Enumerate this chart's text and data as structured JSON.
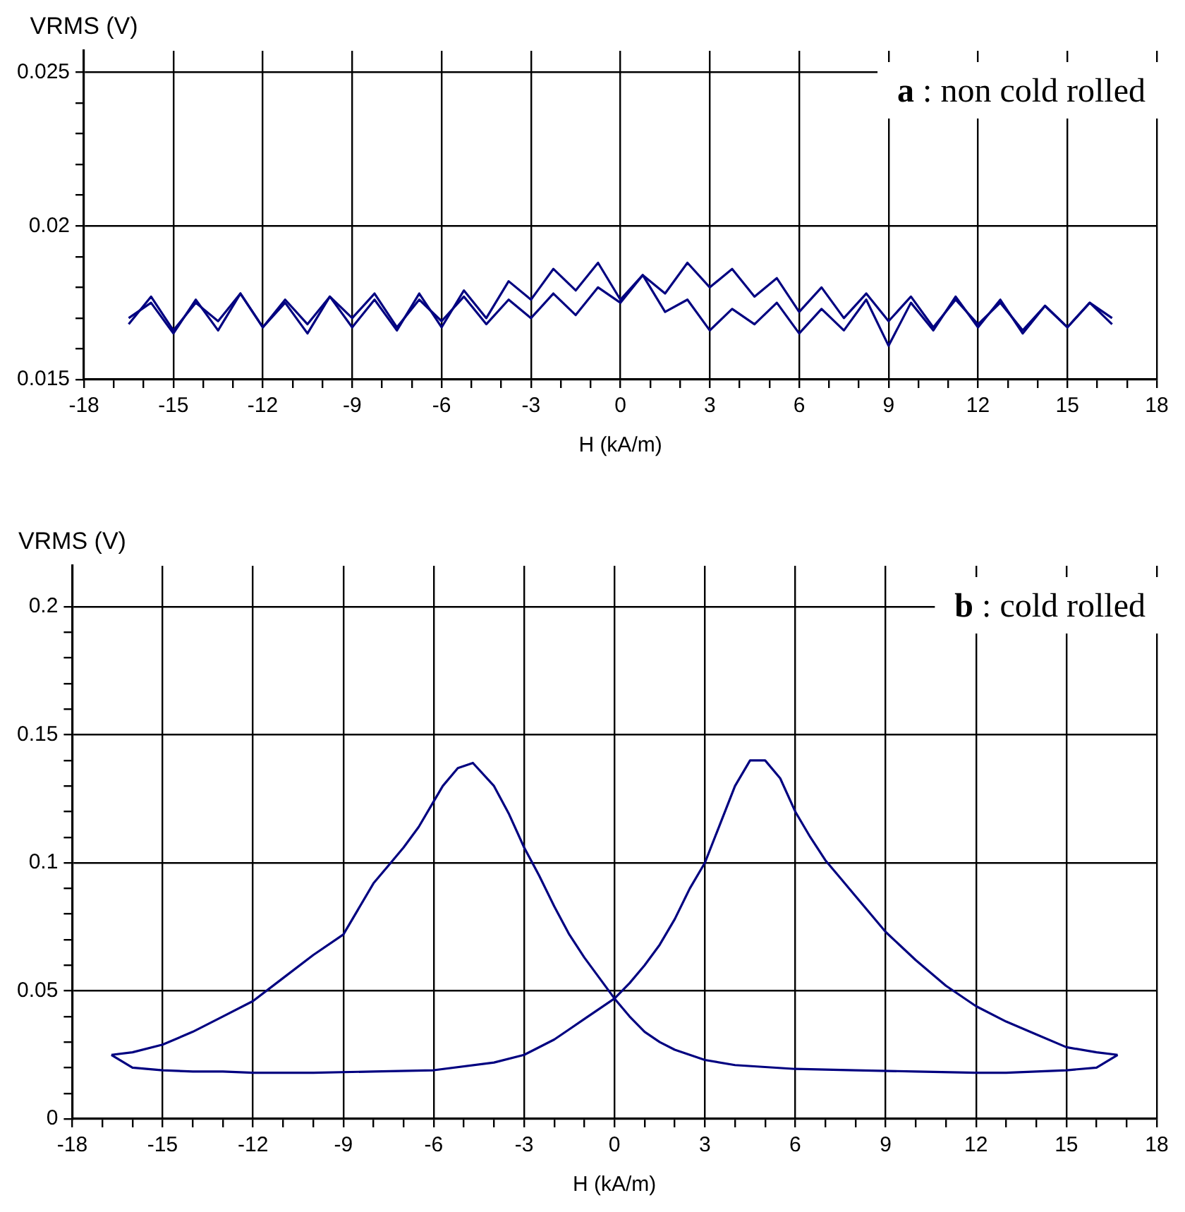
{
  "chart_data": [
    {
      "type": "line",
      "xlabel": "H (kA/m)",
      "ylabel": "VRMS (V)",
      "annotations": [
        "a : non cold rolled"
      ],
      "grid": true,
      "legend": false,
      "xlim": [
        -18,
        18
      ],
      "xticks": [
        -18,
        {
          "value": -17,
          "label": null
        },
        {
          "value": -16,
          "label": null
        },
        -15,
        {
          "value": -14,
          "label": null
        },
        {
          "value": -13,
          "label": null
        },
        -12,
        {
          "value": -11,
          "label": null
        },
        {
          "value": -10,
          "label": null
        },
        -9,
        {
          "value": -8,
          "label": null
        },
        {
          "value": -7,
          "label": null
        },
        -6,
        {
          "value": -5,
          "label": null
        },
        {
          "value": -4,
          "label": null
        },
        -3,
        {
          "value": -2,
          "label": null
        },
        {
          "value": -1,
          "label": null
        },
        0,
        {
          "value": 1,
          "label": null
        },
        {
          "value": 2,
          "label": null
        },
        3,
        {
          "value": 4,
          "label": null
        },
        {
          "value": 5,
          "label": null
        },
        6,
        {
          "value": 7,
          "label": null
        },
        {
          "value": 8,
          "label": null
        },
        9,
        {
          "value": 10,
          "label": null
        },
        {
          "value": 11,
          "label": null
        },
        12,
        {
          "value": 13,
          "label": null
        },
        {
          "value": 14,
          "label": null
        },
        15,
        {
          "value": 16,
          "label": null
        },
        {
          "value": 17,
          "label": null
        },
        18
      ],
      "ylim": [
        0.015,
        0.0257
      ],
      "yticks": [
        0.015,
        {
          "value": 0.016,
          "label": null
        },
        {
          "value": 0.017,
          "label": null
        },
        {
          "value": 0.018,
          "label": null
        },
        {
          "value": 0.019,
          "label": null
        },
        0.02,
        {
          "value": 0.021,
          "label": null
        },
        {
          "value": 0.022,
          "label": null
        },
        {
          "value": 0.023,
          "label": null
        },
        {
          "value": 0.024,
          "label": null
        },
        0.025
      ],
      "series": [
        {
          "color": "#000080",
          "x": [
            -16.5,
            -15.75,
            -15,
            -14.25,
            -13.5,
            -12.75,
            -12,
            -11.25,
            -10.5,
            -9.75,
            -9,
            -8.25,
            -7.5,
            -6.75,
            -6,
            -5.25,
            -4.5,
            -3.75,
            -3,
            -2.25,
            -1.5,
            -0.75,
            0,
            0.75,
            1.5,
            2.25,
            3,
            3.75,
            4.5,
            5.25,
            6,
            6.75,
            7.5,
            8.25,
            9,
            9.75,
            10.5,
            11.25,
            12,
            12.75,
            13.5,
            14.25,
            15,
            15.75,
            16.5
          ],
          "values": [
            0.0168,
            0.0177,
            0.0166,
            0.0175,
            0.0169,
            0.0178,
            0.0167,
            0.0176,
            0.0168,
            0.0177,
            0.017,
            0.0178,
            0.0167,
            0.0176,
            0.0169,
            0.0177,
            0.0168,
            0.0176,
            0.017,
            0.0178,
            0.0171,
            0.018,
            0.0175,
            0.0184,
            0.0178,
            0.0188,
            0.018,
            0.0186,
            0.0177,
            0.0183,
            0.0172,
            0.018,
            0.017,
            0.0178,
            0.0169,
            0.0177,
            0.0167,
            0.0176,
            0.0168,
            0.0175,
            0.0166,
            0.0174,
            0.0167,
            0.0175,
            0.0168
          ]
        },
        {
          "color": "#000080",
          "x": [
            16.5,
            15.75,
            15,
            14.25,
            13.5,
            12.75,
            12,
            11.25,
            10.5,
            9.75,
            9,
            8.25,
            7.5,
            6.75,
            6,
            5.25,
            4.5,
            3.75,
            3,
            2.25,
            1.5,
            0.75,
            0,
            -0.75,
            -1.5,
            -2.25,
            -3,
            -3.75,
            -4.5,
            -5.25,
            -6,
            -6.75,
            -7.5,
            -8.25,
            -9,
            -9.75,
            -10.5,
            -11.25,
            -12,
            -12.75,
            -13.5,
            -14.25,
            -15,
            -15.75,
            -16.5
          ],
          "values": [
            0.017,
            0.0175,
            0.0167,
            0.0174,
            0.0165,
            0.0176,
            0.0167,
            0.0177,
            0.0166,
            0.0175,
            0.0161,
            0.0176,
            0.0166,
            0.0173,
            0.0165,
            0.0175,
            0.0168,
            0.0173,
            0.0166,
            0.0176,
            0.0172,
            0.0184,
            0.0176,
            0.0188,
            0.0179,
            0.0186,
            0.0176,
            0.0182,
            0.017,
            0.0179,
            0.0167,
            0.0178,
            0.0166,
            0.0176,
            0.0167,
            0.0177,
            0.0165,
            0.0175,
            0.0167,
            0.0178,
            0.0166,
            0.0176,
            0.0165,
            0.0175,
            0.017
          ]
        }
      ]
    },
    {
      "type": "line",
      "xlabel": "H (kA/m)",
      "ylabel": "VRMS (V)",
      "annotations": [
        "b : cold rolled"
      ],
      "grid": true,
      "legend": false,
      "xlim": [
        -18,
        18
      ],
      "xticks": [
        -18,
        {
          "value": -17,
          "label": null
        },
        {
          "value": -16,
          "label": null
        },
        -15,
        {
          "value": -14,
          "label": null
        },
        {
          "value": -13,
          "label": null
        },
        -12,
        {
          "value": -11,
          "label": null
        },
        {
          "value": -10,
          "label": null
        },
        -9,
        {
          "value": -8,
          "label": null
        },
        {
          "value": -7,
          "label": null
        },
        -6,
        {
          "value": -5,
          "label": null
        },
        {
          "value": -4,
          "label": null
        },
        -3,
        {
          "value": -2,
          "label": null
        },
        {
          "value": -1,
          "label": null
        },
        0,
        {
          "value": 1,
          "label": null
        },
        {
          "value": 2,
          "label": null
        },
        3,
        {
          "value": 4,
          "label": null
        },
        {
          "value": 5,
          "label": null
        },
        6,
        {
          "value": 7,
          "label": null
        },
        {
          "value": 8,
          "label": null
        },
        9,
        {
          "value": 10,
          "label": null
        },
        {
          "value": 11,
          "label": null
        },
        12,
        {
          "value": 13,
          "label": null
        },
        {
          "value": 14,
          "label": null
        },
        15,
        {
          "value": 16,
          "label": null
        },
        {
          "value": 17,
          "label": null
        },
        18
      ],
      "ylim": [
        0,
        0.216
      ],
      "yticks": [
        0,
        {
          "value": 0.01,
          "label": null
        },
        {
          "value": 0.02,
          "label": null
        },
        {
          "value": 0.03,
          "label": null
        },
        {
          "value": 0.04,
          "label": null
        },
        0.05,
        {
          "value": 0.06,
          "label": null
        },
        {
          "value": 0.07,
          "label": null
        },
        {
          "value": 0.08,
          "label": null
        },
        {
          "value": 0.09,
          "label": null
        },
        0.1,
        {
          "value": 0.11,
          "label": null
        },
        {
          "value": 0.12,
          "label": null
        },
        {
          "value": 0.13,
          "label": null
        },
        {
          "value": 0.14,
          "label": null
        },
        0.15,
        {
          "value": 0.16,
          "label": null
        },
        {
          "value": 0.17,
          "label": null
        },
        {
          "value": 0.18,
          "label": null
        },
        {
          "value": 0.19,
          "label": null
        },
        0.2
      ],
      "series": [
        {
          "color": "#000080",
          "x": [
            -16.7,
            -16,
            -15,
            -14,
            -13,
            -12,
            -10,
            -8,
            -6,
            -4,
            -3,
            -2,
            -1.5,
            -1,
            -0.5,
            0,
            0.5,
            1,
            1.5,
            2,
            2.5,
            3,
            3.5,
            4,
            4.5,
            5,
            5.5,
            6,
            6.5,
            7,
            7.5,
            8,
            9,
            10,
            11,
            12,
            13,
            14,
            15,
            16,
            16.7
          ],
          "values": [
            0.025,
            0.02,
            0.019,
            0.0185,
            0.0185,
            0.018,
            0.018,
            0.0185,
            0.019,
            0.022,
            0.025,
            0.031,
            0.035,
            0.039,
            0.043,
            0.047,
            0.053,
            0.06,
            0.068,
            0.078,
            0.09,
            0.1,
            0.115,
            0.13,
            0.14,
            0.14,
            0.133,
            0.12,
            0.11,
            0.101,
            0.094,
            0.087,
            0.073,
            0.062,
            0.052,
            0.044,
            0.038,
            0.033,
            0.028,
            0.026,
            0.025
          ]
        },
        {
          "color": "#000080",
          "x": [
            16.7,
            16,
            15,
            14,
            13,
            12,
            10,
            8,
            6,
            4,
            3,
            2,
            1.5,
            1,
            0.5,
            0,
            -0.5,
            -1,
            -1.5,
            -2,
            -2.5,
            -3,
            -3.5,
            -4,
            -4.7,
            -5.2,
            -5.7,
            -6,
            -6.5,
            -7,
            -7.5,
            -8,
            -9,
            -10,
            -11,
            -12,
            -13,
            -14,
            -15,
            -16,
            -16.7
          ],
          "values": [
            0.025,
            0.02,
            0.019,
            0.0185,
            0.018,
            0.018,
            0.0185,
            0.019,
            0.0195,
            0.021,
            0.023,
            0.027,
            0.03,
            0.034,
            0.04,
            0.047,
            0.055,
            0.063,
            0.072,
            0.083,
            0.095,
            0.106,
            0.119,
            0.13,
            0.139,
            0.137,
            0.13,
            0.124,
            0.114,
            0.106,
            0.099,
            0.092,
            0.072,
            0.064,
            0.055,
            0.046,
            0.04,
            0.034,
            0.029,
            0.026,
            0.025
          ]
        }
      ]
    }
  ]
}
